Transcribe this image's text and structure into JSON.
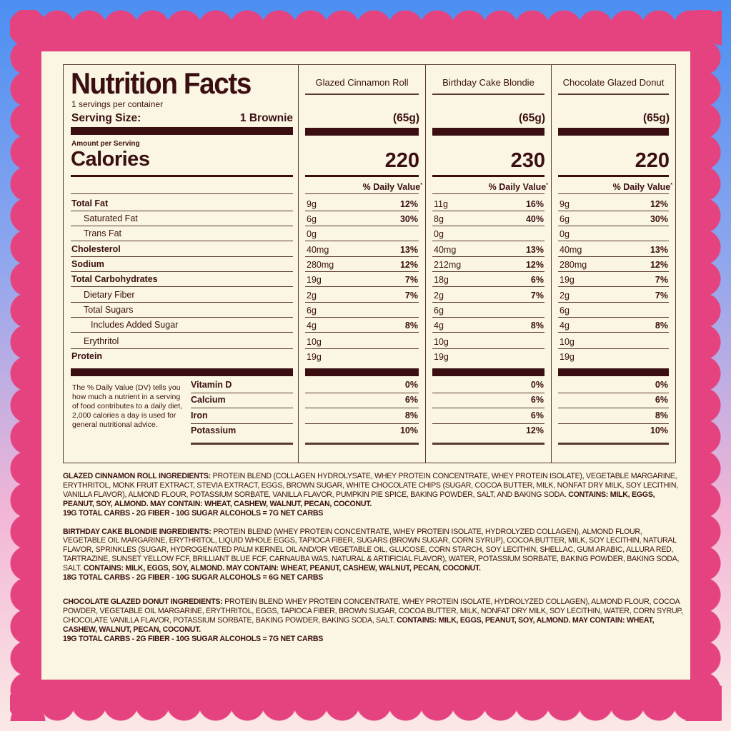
{
  "colors": {
    "border_pink": "#e4437f",
    "panel": "#faf6e3",
    "text": "#3b0f12",
    "bg_top": "#4b8ff2",
    "bg_bottom": "#fbe9e6"
  },
  "label": {
    "title": "Nutrition Facts",
    "servings": "1 servings per container",
    "serving_size_label": "Serving Size:",
    "serving_size_value": "1 Brownie",
    "amount_per_serving": "Amount per Serving",
    "calories_label": "Calories",
    "nutrients": [
      "Total Fat",
      "Saturated Fat",
      "Trans Fat",
      "Cholesterol",
      "Sodium",
      "Total Carbohydrates",
      "Dietary Fiber",
      "Total Sugars",
      "Includes Added Sugar",
      "Erythritol",
      "Protein"
    ],
    "vitamins": [
      "Vitamin D",
      "Calcium",
      "Iron",
      "Potassium"
    ],
    "footnote": "The % Daily Value (DV) tells you how much a nutrient in a serving of food contributes to a daily diet, 2,000 calories a day is used for general nutritional advice."
  },
  "products": [
    {
      "name": "Glazed Cinnamon Roll",
      "weight": "(65g)",
      "calories": "220",
      "dv_header": "% Daily Value",
      "dv_mark": "*",
      "amounts": [
        "9g",
        "6g",
        "0g",
        "40mg",
        "280mg",
        "19g",
        "2g",
        "6g",
        "4g",
        "10g",
        "19g"
      ],
      "dv": [
        "12%",
        "30%",
        "",
        "13%",
        "12%",
        "7%",
        "7%",
        "",
        "8%",
        "",
        ""
      ],
      "vitamins": [
        "0%",
        "6%",
        "8%",
        "10%"
      ]
    },
    {
      "name": "Birthday Cake Blondie",
      "weight": "(65g)",
      "calories": "230",
      "dv_header": "% Daily Value",
      "dv_mark": "*",
      "amounts": [
        "11g",
        "8g",
        "0g",
        "40mg",
        "212mg",
        "18g",
        "2g",
        "6g",
        "4g",
        "10g",
        "19g"
      ],
      "dv": [
        "16%",
        "40%",
        "",
        "13%",
        "12%",
        "6%",
        "7%",
        "",
        "8%",
        "",
        ""
      ],
      "vitamins": [
        "0%",
        "6%",
        "6%",
        "12%"
      ]
    },
    {
      "name": "Chocolate Glazed Donut",
      "weight": "(65g)",
      "calories": "220",
      "dv_header": "% Daily Value",
      "dv_mark": "*",
      "amounts": [
        "9g",
        "6g",
        "0g",
        "40mg",
        "280mg",
        "19g",
        "2g",
        "6g",
        "4g",
        "10g",
        "19g"
      ],
      "dv": [
        "12%",
        "30%",
        "",
        "13%",
        "12%",
        "7%",
        "7%",
        "",
        "8%",
        "",
        ""
      ],
      "vitamins": [
        "0%",
        "6%",
        "8%",
        "10%"
      ]
    }
  ],
  "ingredients": [
    {
      "heading": "GLAZED CINNAMON ROLL INGREDIENTS:",
      "text": " PROTEIN BLEND (COLLAGEN HYDROLYSATE, WHEY PROTEIN CONCENTRATE, WHEY PROTEIN ISOLATE), VEGETABLE MARGARINE, ERYTHRITOL, MONK FRUIT EXTRACT, STEVIA EXTRACT, EGGS, BROWN SUGAR, WHITE CHOCOLATE CHIPS (SUGAR, COCOA BUTTER, MILK, NONFAT DRY MILK, SOY LECITHIN, VANILLA FLAVOR), ALMOND FLOUR, POTASSIUM SORBATE, VANILLA FLAVOR, PUMPKIN PIE SPICE, BAKING POWDER, SALT, AND BAKING SODA. ",
      "allergens": "CONTAINS: MILK, EGGS, PEANUT, SOY, ALMOND. MAY CONTAIN: WHEAT, CASHEW, WALNUT, PECAN, COCONUT.",
      "net_carbs": "19G TOTAL CARBS - 2G FIBER - 10G SUGAR ALCOHOLS = 7G NET CARBS"
    },
    {
      "heading": "BIRTHDAY CAKE BLONDIE INGREDIENTS:",
      "text": " PROTEIN BLEND (WHEY PROTEIN CONCENTRATE, WHEY PROTEIN ISOLATE, HYDROLYZED COLLAGEN), ALMOND FLOUR, VEGETABLE OIL MARGARINE, ERYTHRITOL, LIQUID WHOLE EGGS, TAPIOCA FIBER, SUGARS (BROWN SUGAR, CORN SYRUP), COCOA BUTTER, MILK, SOY LECITHIN, NATURAL FLAVOR, SPRINKLES (SUGAR, HYDROGENATED PALM KERNEL OIL AND/OR VEGETABLE OIL, GLUCOSE, CORN STARCH, SOY LECITHIN, SHELLAC, GUM ARABIC, ALLURA RED, TARTRAZINE, SUNSET YELLOW FCF, BRILLIANT BLUE FCF, CARNAUBA WAS, NATURAL & ARTIFICIAL FLAVOR), WATER, POTASSIUM SORBATE, BAKING POWDER, BAKING SODA, SALT. ",
      "allergens": "CONTAINS: MILK, EGGS, SOY, ALMOND. MAY CONTAIN: WHEAT, PEANUT, CASHEW, WALNUT, PECAN, COCONUT.",
      "net_carbs": "18G TOTAL CARBS - 2G FIBER - 10G SUGAR ALCOHOLS = 6G NET CARBS"
    },
    {
      "heading": "CHOCOLATE GLAZED DONUT INGREDIENTS:",
      "text": " PROTEIN BLEND WHEY PROTEIN CONCENTRATE, WHEY PROTEIN ISOLATE, HYDROLYZED COLLAGEN), ALMOND FLOUR, COCOA POWDER, VEGETABLE OIL MARGARINE, ERYTHRITOL, EGGS, TAPIOCA FIBER, BROWN SUGAR, COCOA BUTTER, MILK, NONFAT DRY MILK, SOY LECITHIN, WATER, CORN SYRUP, CHOCOLATE VANILLA FLAVOR, POTASSIUM SORBATE, BAKING POWDER, BAKING SODA, SALT. ",
      "allergens": "CONTAINS: MILK, EGGS, PEANUT, SOY, ALMOND. MAY CONTAIN: WHEAT, CASHEW, WALNUT, PECAN, COCONUT.",
      "net_carbs": "19G TOTAL CARBS - 2G FIBER - 10G SUGAR ALCOHOLS = 7G NET CARBS"
    }
  ]
}
